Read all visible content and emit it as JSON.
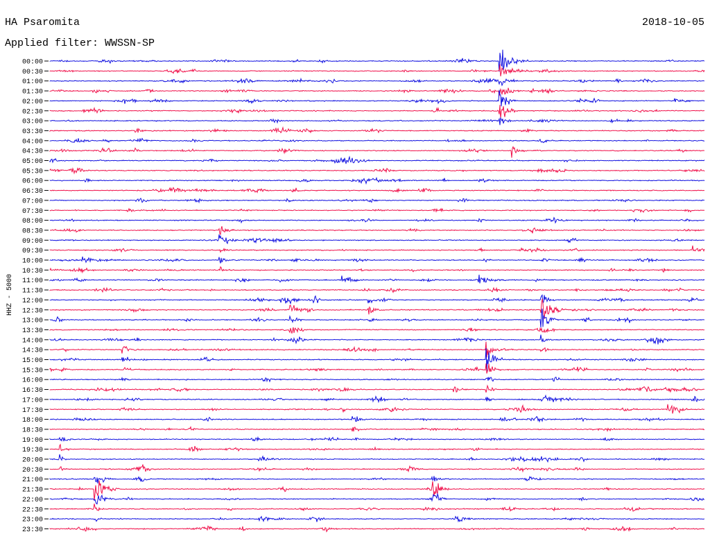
{
  "header": {
    "station": "HA Psaromita",
    "date": "2018-10-05",
    "filter": "Applied filter: WWSSN-SP"
  },
  "colors": {
    "blue": "#1010e0",
    "red": "#f0104a"
  },
  "chart_data": {
    "type": "line",
    "title": "HA Psaromita",
    "ylabel": "HHZ - 5000",
    "ytick_labels": [
      "00:00",
      "00:30",
      "01:00",
      "01:30",
      "02:00",
      "02:30",
      "03:00",
      "03:30",
      "04:00",
      "04:30",
      "05:00",
      "05:30",
      "06:00",
      "06:30",
      "07:00",
      "07:30",
      "08:00",
      "08:30",
      "09:00",
      "09:30",
      "10:00",
      "10:30",
      "11:00",
      "11:30",
      "12:00",
      "12:30",
      "13:00",
      "13:30",
      "14:00",
      "14:30",
      "15:00",
      "15:30",
      "16:00",
      "16:30",
      "17:00",
      "17:30",
      "18:00",
      "18:30",
      "19:00",
      "19:30",
      "20:00",
      "20:30",
      "21:00",
      "21:30",
      "22:00",
      "22:30",
      "23:00",
      "23:30"
    ],
    "line_colors_alternate": [
      "blue",
      "red"
    ],
    "x_range_minutes": [
      0,
      30
    ],
    "grid": false
  }
}
